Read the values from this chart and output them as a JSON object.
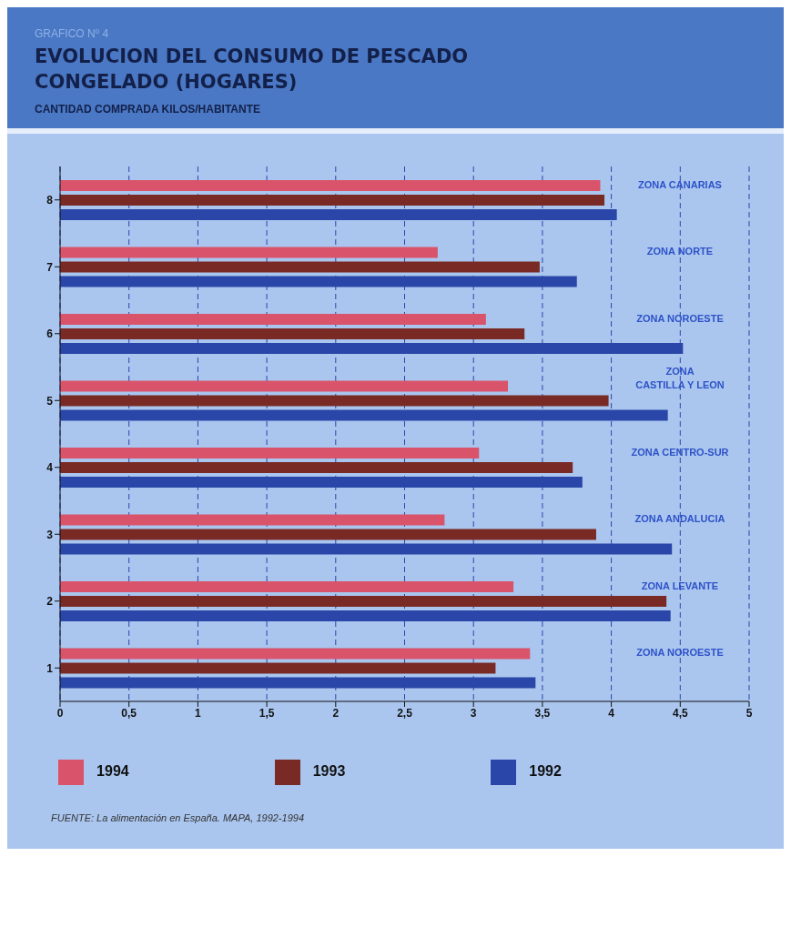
{
  "chart_data": {
    "type": "bar",
    "orientation": "horizontal",
    "title": "EVOLUCION DEL CONSUMO DE PESCADO CONGELADO (HOGARES)",
    "subtitle": "CANTIDAD COMPRADA KILOS/HABITANTE",
    "categories": [
      "8",
      "7",
      "6",
      "5",
      "4",
      "3",
      "2",
      "1"
    ],
    "series": [
      {
        "name": "1994",
        "color": "#d9536a",
        "values": [
          3.92,
          2.74,
          3.09,
          3.25,
          3.04,
          2.79,
          3.29,
          3.41
        ]
      },
      {
        "name": "1993",
        "color": "#7a2a24",
        "values": [
          3.95,
          3.48,
          3.37,
          3.98,
          3.72,
          3.89,
          4.4,
          3.16
        ]
      },
      {
        "name": "1992",
        "color": "#2a46a8",
        "values": [
          4.04,
          3.75,
          4.52,
          4.41,
          3.79,
          4.44,
          4.43,
          3.45
        ]
      }
    ],
    "xlim": [
      0,
      5
    ],
    "xticks": [
      0,
      {
        "value": 0.5,
        "label": "0,5"
      },
      1,
      {
        "value": 1.5,
        "label": "1,5"
      },
      2,
      {
        "value": 2.5,
        "label": "2,5"
      },
      3,
      {
        "value": 3.5,
        "label": "3,5"
      },
      4,
      {
        "value": 4.5,
        "label": "4,5"
      },
      5
    ],
    "grid": "x",
    "line_style": "dashed",
    "legend": "bottom",
    "annotations": [
      "GRAFICO Nº 4",
      "ZONA CANARIAS",
      "ZONA NORTE",
      "ZONA NOROESTE",
      "ZONA\nCASTILLA Y LEON",
      "ZONA CENTRO-SUR",
      "ZONA ANDALUCIA",
      "ZONA LEVANTE",
      "ZONA NOROESTE",
      "FUENTE: La alimentación en España. MAPA, 1992-1994"
    ]
  }
}
